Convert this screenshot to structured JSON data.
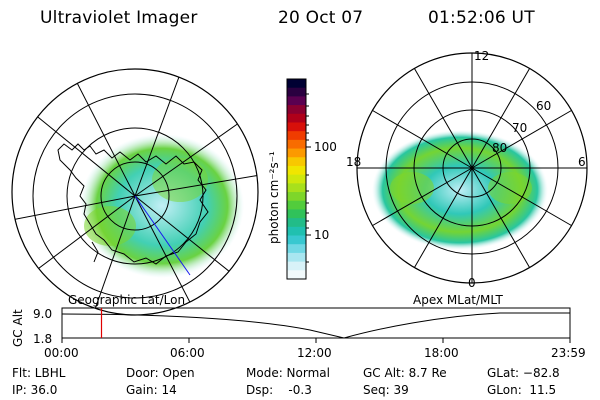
{
  "header": {
    "title": "Ultraviolet Imager",
    "date": "20 Oct 07",
    "time": "01:52:06 UT"
  },
  "left_map": {
    "label": "Geographic Lat/Lon"
  },
  "right_map": {
    "label": "Apex MLat/MLT",
    "mlt_labels": [
      "12",
      "18",
      "6",
      "0"
    ],
    "mlat_labels": [
      "60",
      "70",
      "80"
    ]
  },
  "colorbar": {
    "unit_label": "photon cm⁻²s⁻¹",
    "tick_labels": [
      "100",
      "10"
    ],
    "colors": [
      "#000033",
      "#2a0040",
      "#5a0050",
      "#8a0030",
      "#b0001a",
      "#d8100a",
      "#f03c00",
      "#f86c00",
      "#fc9a00",
      "#f8c800",
      "#f0e600",
      "#cfe80c",
      "#a8e01c",
      "#7ed62a",
      "#52cc3c",
      "#30c25a",
      "#22bc88",
      "#20c0b0",
      "#38c8d0",
      "#70d8e4",
      "#a8e6f0",
      "#d8f2f8",
      "#f2fafc"
    ]
  },
  "timeline": {
    "axis_label": "GC Alt",
    "y_ticks": [
      "9.0",
      "1.8"
    ],
    "x_ticks": [
      "00:00",
      "06:00",
      "12:00",
      "18:00",
      "23:59"
    ],
    "marker_time": "01:52:06",
    "marker_color": "#e00000"
  },
  "info": {
    "flt": "Flt: LBHL",
    "ip": "IP: 36.0",
    "door": "Door: Open",
    "gain": "Gain: 14",
    "mode": "Mode: Normal",
    "dsp": "Dsp:    -0.3",
    "gcalt": "GC Alt: 8.7 Re",
    "seq": "Seq: 39",
    "glat": "GLat: −82.8",
    "glon": "GLon:  11.5"
  }
}
